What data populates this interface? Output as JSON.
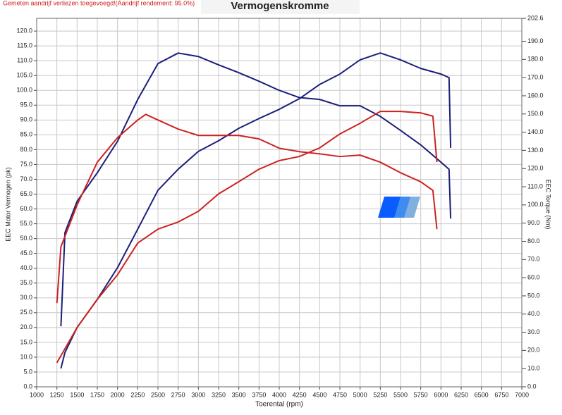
{
  "chart_data": {
    "type": "line",
    "title": "Vermogenskromme",
    "subtitle": "Gemeten aandrijf verliezen toegevoegd!(Aandrijf rendement: 95.0%)",
    "x_label": "Toerental (rpm)",
    "y_label": "EEC Motor Vermogen (pk)",
    "y2_label": "EEC Torque (Nm)",
    "grid": true,
    "xlim": [
      1000,
      7000
    ],
    "xticks": [
      1000,
      1250,
      1500,
      1750,
      2000,
      2250,
      2500,
      2750,
      3000,
      3250,
      3500,
      3750,
      4000,
      4250,
      4500,
      4750,
      5000,
      5250,
      5500,
      5750,
      6000,
      6250,
      6500,
      6750,
      7000
    ],
    "ylim": [
      0,
      124.3
    ],
    "yticks": [
      {
        "value": 0,
        "label": "0.0"
      },
      {
        "value": 5,
        "label": "5.0"
      },
      {
        "value": 10,
        "label": "10.0"
      },
      {
        "value": 15,
        "label": "15.0"
      },
      {
        "value": 20,
        "label": "20.0"
      },
      {
        "value": 25,
        "label": "25.0"
      },
      {
        "value": 30,
        "label": "30.0"
      },
      {
        "value": 35,
        "label": "35.0"
      },
      {
        "value": 40,
        "label": "40.0"
      },
      {
        "value": 45,
        "label": "45.0"
      },
      {
        "value": 50,
        "label": "50.0"
      },
      {
        "value": 55,
        "label": "55.0"
      },
      {
        "value": 60,
        "label": "60.0"
      },
      {
        "value": 65,
        "label": "65.0"
      },
      {
        "value": 70,
        "label": "70.0"
      },
      {
        "value": 75,
        "label": "75.0"
      },
      {
        "value": 80,
        "label": "80.0"
      },
      {
        "value": 85,
        "label": "85.0"
      },
      {
        "value": 90,
        "label": "90.0"
      },
      {
        "value": 95,
        "label": "95.0"
      },
      {
        "value": 100,
        "label": "100.0"
      },
      {
        "value": 105,
        "label": "105.0"
      },
      {
        "value": 110,
        "label": "110.0"
      },
      {
        "value": 115,
        "label": "115.0"
      },
      {
        "value": 120,
        "label": "120.0"
      }
    ],
    "y2lim": [
      0,
      202.6
    ],
    "y2ticks": [
      {
        "value": 0,
        "label": "0.0"
      },
      {
        "value": 10,
        "label": "10.0"
      },
      {
        "value": 20,
        "label": "20.0"
      },
      {
        "value": 30,
        "label": "30.0"
      },
      {
        "value": 40,
        "label": "40.0"
      },
      {
        "value": 50,
        "label": "50.0"
      },
      {
        "value": 60,
        "label": "60.0"
      },
      {
        "value": 70,
        "label": "70.0"
      },
      {
        "value": 80,
        "label": "80.0"
      },
      {
        "value": 90,
        "label": "90.0"
      },
      {
        "value": 100,
        "label": "100.0"
      },
      {
        "value": 110,
        "label": "110.0"
      },
      {
        "value": 120,
        "label": "120.0"
      },
      {
        "value": 130,
        "label": "130.0"
      },
      {
        "value": 140,
        "label": "140.0"
      },
      {
        "value": 150,
        "label": "150.0"
      },
      {
        "value": 160,
        "label": "160.0"
      },
      {
        "value": 170,
        "label": "170.0"
      },
      {
        "value": 180,
        "label": "180.0"
      },
      {
        "value": 190,
        "label": "190.0"
      },
      202.6
    ],
    "series": [
      {
        "color": "#1a1f7a",
        "axis": "y2",
        "x": [
          1300,
          1350,
          1500,
          1750,
          2000,
          2250,
          2500,
          2750,
          3000,
          3250,
          3500,
          3750,
          4000,
          4250,
          4500,
          4750,
          5000,
          5250,
          5500,
          5750,
          6000,
          6100,
          6120
        ],
        "values": [
          33.3,
          84.8,
          102,
          117.7,
          135,
          158,
          177.7,
          183.5,
          181.6,
          177,
          172.7,
          168,
          163,
          159,
          158,
          154.5,
          154.5,
          148.7,
          141,
          133,
          123.5,
          119.6,
          92.5
        ]
      },
      {
        "color": "#1a1f7a",
        "x": [
          1300,
          1350,
          1500,
          1750,
          2000,
          2250,
          2500,
          2750,
          3000,
          3250,
          3500,
          3750,
          4000,
          4250,
          4500,
          4750,
          5000,
          5250,
          5500,
          5750,
          6000,
          6100,
          6120
        ],
        "values": [
          6.2,
          11.6,
          20,
          29.5,
          40.2,
          53.2,
          66.3,
          73.4,
          79.4,
          83,
          87.2,
          90.5,
          93.6,
          97.2,
          102,
          105.5,
          110.3,
          112.6,
          110.3,
          107.4,
          105.5,
          104.3,
          80.6
        ]
      },
      {
        "color": "#cc2222",
        "axis": "y2",
        "x": [
          1250,
          1300,
          1500,
          1750,
          2000,
          2250,
          2350,
          2500,
          2750,
          3000,
          3250,
          3500,
          3750,
          4000,
          4250,
          4500,
          4750,
          5000,
          5250,
          5500,
          5750,
          5900,
          5950
        ],
        "values": [
          46,
          77,
          100,
          123.5,
          137,
          146.7,
          149.8,
          146.7,
          141.7,
          138.2,
          138.2,
          138.2,
          136.3,
          131.2,
          129.3,
          128.1,
          126.6,
          127.4,
          123.5,
          117.7,
          112.7,
          108,
          86.7
        ]
      },
      {
        "color": "#cc2222",
        "x": [
          1250,
          1500,
          1750,
          2000,
          2250,
          2500,
          2750,
          3000,
          3250,
          3500,
          3750,
          4000,
          4250,
          4500,
          4750,
          5000,
          5250,
          5500,
          5750,
          5900,
          5950
        ],
        "values": [
          8.1,
          20,
          29.5,
          37.8,
          48.5,
          53.2,
          55.6,
          59.2,
          65.1,
          69.2,
          73.4,
          76.3,
          77.7,
          80.6,
          85.3,
          88.9,
          92.9,
          92.9,
          92.4,
          91.3,
          75.8
        ]
      }
    ]
  }
}
